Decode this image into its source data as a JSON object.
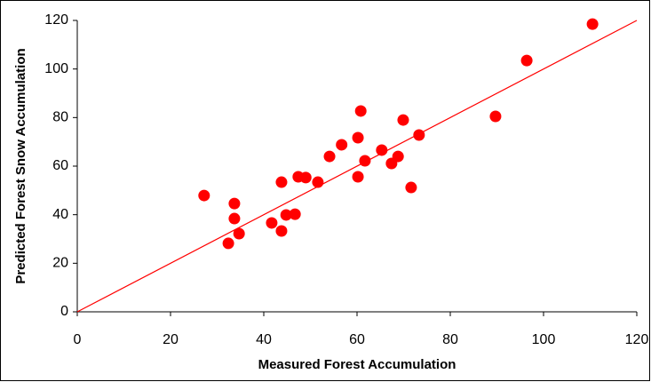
{
  "chart_data": {
    "type": "scatter",
    "x_label": "Measured Forest Accumulation",
    "y_label": "Predicted Forest Snow Accumulation",
    "xlim": [
      0,
      120
    ],
    "ylim": [
      0,
      120
    ],
    "xticks": [
      0,
      20,
      40,
      60,
      80,
      100,
      120
    ],
    "yticks": [
      0,
      20,
      40,
      60,
      80,
      100,
      120
    ],
    "grid": false,
    "series": [
      {
        "color": "#ff0000",
        "x": [
          27.2,
          33.7,
          33.7,
          34.7,
          32.4,
          41.7,
          43.8,
          43.8,
          44.8,
          46.7,
          47.4,
          49.0,
          51.6,
          54.1,
          56.7,
          60.2,
          60.8,
          60.2,
          61.7,
          65.3,
          67.4,
          68.8,
          69.9,
          71.6,
          73.3,
          89.7,
          96.4,
          110.5
        ],
        "values": [
          47.9,
          44.6,
          38.4,
          32.2,
          28.2,
          36.6,
          33.3,
          53.4,
          39.9,
          40.2,
          55.6,
          55.3,
          53.4,
          64.0,
          68.8,
          71.7,
          82.7,
          55.6,
          62.2,
          66.6,
          61.1,
          64.0,
          79.0,
          51.2,
          72.8,
          80.5,
          103.5,
          118.5
        ]
      }
    ],
    "reference_line": {
      "color": "#ff0000",
      "x": [
        0,
        120
      ],
      "values": [
        0,
        120
      ]
    }
  }
}
